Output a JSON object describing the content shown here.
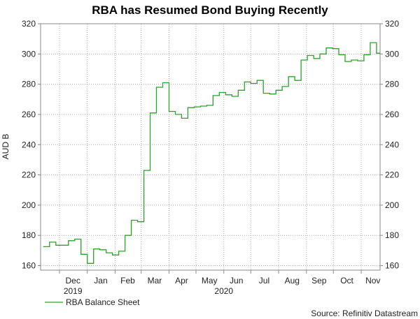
{
  "chart_data": {
    "type": "line",
    "title": "RBA has Resumed Bond Buying Recently",
    "ylabel": "AUD B",
    "ylim": [
      157,
      320
    ],
    "yticks": [
      160,
      180,
      200,
      220,
      240,
      260,
      280,
      300,
      320
    ],
    "x_month_labels": [
      "Dec",
      "Jan",
      "Feb",
      "Mar",
      "Apr",
      "May",
      "Jun",
      "Jul",
      "Aug",
      "Sep",
      "Oct",
      "Nov"
    ],
    "x_year_labels": [
      "2019",
      "2020"
    ],
    "legend": {
      "label": "RBA Balance Sheet",
      "position": "bottom-left"
    },
    "source": "Source: Refinitiv Datastream",
    "series": [
      {
        "name": "RBA Balance Sheet",
        "color": "#2ca02c",
        "x": [
          "2019-11-13",
          "2019-11-20",
          "2019-11-27",
          "2019-12-04",
          "2019-12-11",
          "2019-12-18",
          "2019-12-25",
          "2020-01-01",
          "2020-01-08",
          "2020-01-15",
          "2020-01-22",
          "2020-01-29",
          "2020-02-05",
          "2020-02-12",
          "2020-02-19",
          "2020-02-26",
          "2020-03-04",
          "2020-03-11",
          "2020-03-18",
          "2020-03-25",
          "2020-04-01",
          "2020-04-08",
          "2020-04-15",
          "2020-04-22",
          "2020-04-29",
          "2020-05-06",
          "2020-05-13",
          "2020-05-20",
          "2020-05-27",
          "2020-06-03",
          "2020-06-10",
          "2020-06-17",
          "2020-06-24",
          "2020-07-01",
          "2020-07-08",
          "2020-07-15",
          "2020-07-22",
          "2020-07-29",
          "2020-08-05",
          "2020-08-12",
          "2020-08-19",
          "2020-08-26",
          "2020-09-02",
          "2020-09-09",
          "2020-09-16",
          "2020-09-23",
          "2020-09-30",
          "2020-10-07",
          "2020-10-14",
          "2020-10-21",
          "2020-10-28",
          "2020-11-04",
          "2020-11-11",
          "2020-11-18"
        ],
        "values": [
          172.5,
          175.5,
          173.5,
          173.5,
          176.5,
          177.5,
          167.5,
          161.5,
          171,
          170.5,
          168.5,
          167,
          169.5,
          180,
          190,
          189,
          223,
          261,
          278,
          281,
          262,
          260,
          257.5,
          264.5,
          265,
          265.5,
          266,
          272.5,
          274.5,
          273,
          272,
          276,
          281.5,
          280.5,
          282.5,
          274,
          273.5,
          276,
          278.5,
          285,
          282.5,
          296,
          299,
          297,
          300,
          304,
          303.5,
          299.5,
          295,
          296,
          295.5,
          299.5,
          307.5,
          300.5
        ]
      }
    ]
  }
}
